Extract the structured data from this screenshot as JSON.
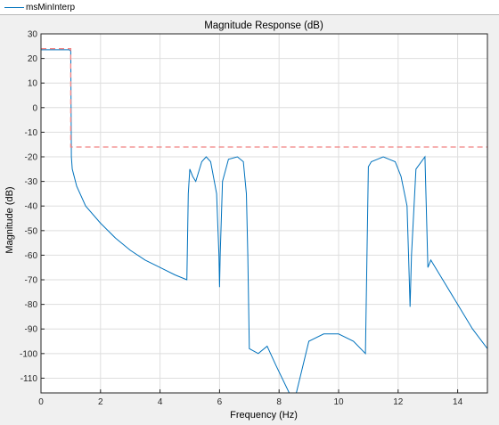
{
  "legend": {
    "label": "msMinInterp"
  },
  "colors": {
    "response": "#0072bd",
    "mask": "#f08080",
    "grid": "#dedede",
    "background": "#ffffff"
  },
  "chart_data": {
    "type": "line",
    "title": "Magnitude Response (dB)",
    "xlabel": "Frequency (Hz)",
    "ylabel": "Magnitude (dB)",
    "xlim": [
      0,
      15
    ],
    "ylim": [
      -116,
      30
    ],
    "xticks": [
      0,
      2,
      4,
      6,
      8,
      10,
      12,
      14
    ],
    "yticks": [
      30,
      20,
      10,
      0,
      -10,
      -20,
      -30,
      -40,
      -50,
      -60,
      -70,
      -80,
      -90,
      -100,
      -110
    ],
    "grid": true,
    "legend_position": "top-left",
    "series": [
      {
        "name": "msMinInterp",
        "style": "solid",
        "x": [
          0,
          0.95,
          1.0,
          1.02,
          1.05,
          1.2,
          1.5,
          2.0,
          2.5,
          3.0,
          3.5,
          4.0,
          4.5,
          4.9,
          4.95,
          5.0,
          5.1,
          5.2,
          5.4,
          5.55,
          5.7,
          5.9,
          5.98,
          6.0,
          6.02,
          6.1,
          6.3,
          6.6,
          6.8,
          6.9,
          6.95,
          7.0,
          7.3,
          7.6,
          7.9,
          8.5,
          9.0,
          9.5,
          10.0,
          10.5,
          10.9,
          11.0,
          11.1,
          11.3,
          11.5,
          11.7,
          11.9,
          12.1,
          12.3,
          12.35,
          12.4,
          12.45,
          12.6,
          12.9,
          13.0,
          13.1,
          13.5,
          14.0,
          14.5,
          15.0
        ],
        "y": [
          23.5,
          23.5,
          23.0,
          -20,
          -25,
          -32,
          -40,
          -47,
          -53,
          -58,
          -62,
          -65,
          -68,
          -70,
          -35,
          -25,
          -28,
          -30,
          -22,
          -20,
          -22,
          -35,
          -60,
          -73,
          -60,
          -30,
          -21,
          -20,
          -22,
          -35,
          -60,
          -98,
          -100,
          -97,
          -105,
          -120,
          -95,
          -92,
          -92,
          -95,
          -100,
          -24,
          -22,
          -21,
          -20,
          -21,
          -22,
          -28,
          -40,
          -60,
          -81,
          -60,
          -25,
          -20,
          -65,
          -62,
          -70,
          -80,
          -90,
          -98
        ]
      },
      {
        "name": "mask",
        "style": "dashed",
        "x": [
          0,
          1.0,
          1.0,
          15
        ],
        "y": [
          24,
          24,
          -16,
          -16
        ]
      }
    ]
  }
}
